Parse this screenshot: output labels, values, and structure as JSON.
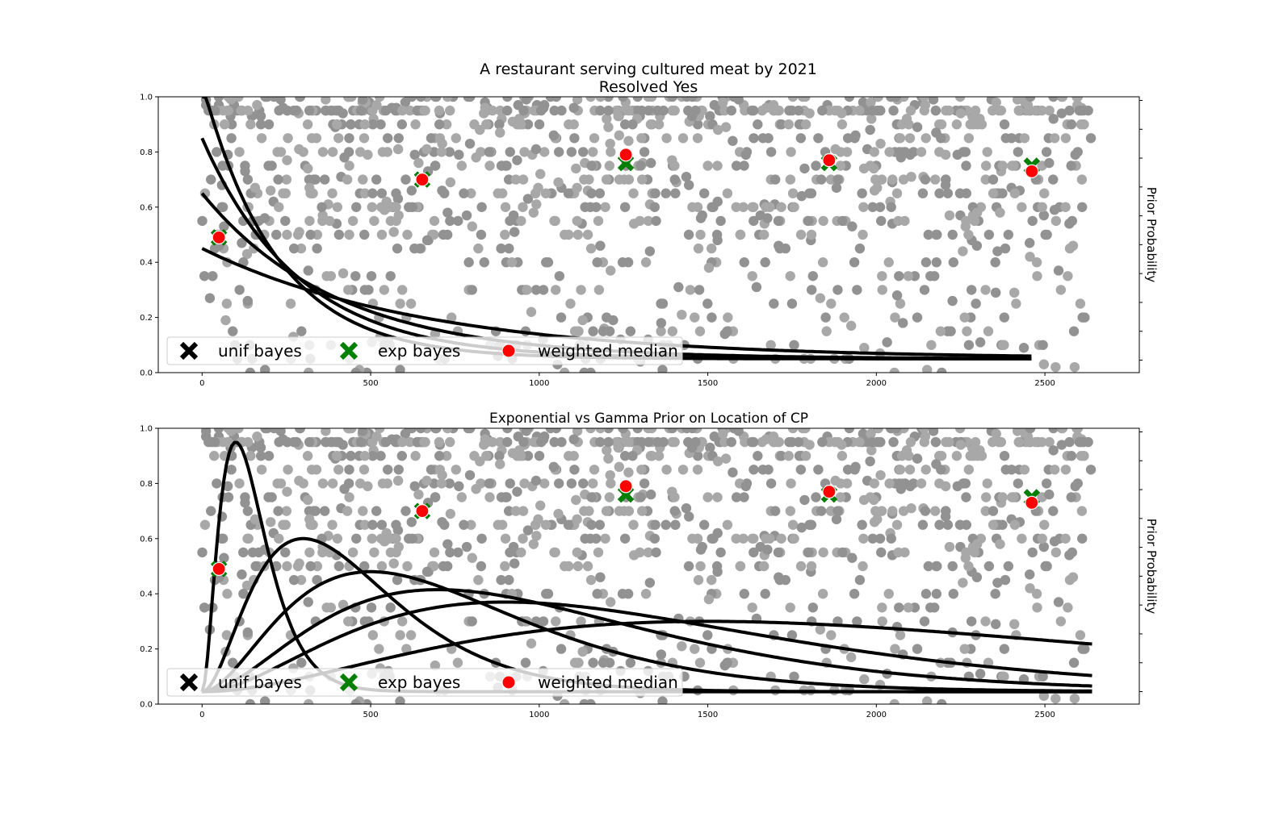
{
  "figure": {
    "title_line1": "A restaurant serving cultured meat by 2021",
    "title_line2": "Resolved Yes"
  },
  "chart_data": [
    {
      "type": "scatter",
      "title": "A restaurant serving cultured meat by 2021\nResolved Yes",
      "xlabel": "",
      "ylabel": "",
      "y2label": "Prior Probability",
      "xlim": [
        -130,
        2780
      ],
      "ylim": [
        0,
        1
      ],
      "xticks": [
        0,
        500,
        1000,
        1500,
        2000,
        2500
      ],
      "yticks": [
        0.0,
        0.2,
        0.4,
        0.6,
        0.8,
        1.0
      ],
      "legend": {
        "placement": "lower-left",
        "entries": [
          {
            "label": "unif bayes",
            "marker": "x",
            "color": "#000000"
          },
          {
            "label": "exp bayes",
            "marker": "x",
            "color": "#008000"
          },
          {
            "label": "weighted median",
            "marker": "o",
            "color": "#ff0000"
          }
        ]
      },
      "scatter_color": "#808080",
      "markers": {
        "x": [
          50,
          653,
          1257,
          1860,
          2461
        ],
        "unif_bayes": [
          0.49,
          0.7,
          0.76,
          0.76,
          0.75
        ],
        "exp_bayes": [
          0.49,
          0.7,
          0.76,
          0.76,
          0.75
        ],
        "weighted_median": [
          0.49,
          0.7,
          0.79,
          0.77,
          0.73
        ]
      },
      "prior_curves": {
        "kind": "exponential",
        "rates": [
          0.0015,
          0.0025,
          0.0035,
          0.0045
        ],
        "x_end": 2460
      }
    },
    {
      "type": "scatter",
      "title": "Exponential vs Gamma Prior on Location of CP",
      "xlabel": "",
      "ylabel": "",
      "y2label": "Prior Probability",
      "xlim": [
        -130,
        2780
      ],
      "ylim": [
        0,
        1
      ],
      "xticks": [
        0,
        500,
        1000,
        1500,
        2000,
        2500
      ],
      "yticks": [
        0.0,
        0.2,
        0.4,
        0.6,
        0.8,
        1.0
      ],
      "legend": {
        "placement": "lower-left",
        "entries": [
          {
            "label": "unif bayes",
            "marker": "x",
            "color": "#000000"
          },
          {
            "label": "exp bayes",
            "marker": "x",
            "color": "#008000"
          },
          {
            "label": "weighted median",
            "marker": "o",
            "color": "#ff0000"
          }
        ]
      },
      "scatter_color": "#808080",
      "markers": {
        "x": [
          50,
          653,
          1257,
          1860,
          2461
        ],
        "unif_bayes": [
          0.49,
          0.7,
          0.76,
          0.76,
          0.75
        ],
        "exp_bayes": [
          0.49,
          0.7,
          0.76,
          0.76,
          0.75
        ],
        "weighted_median": [
          0.49,
          0.7,
          0.79,
          0.77,
          0.73
        ]
      },
      "prior_curves": {
        "kind": "gamma",
        "modes": [
          100,
          300,
          500,
          700,
          900,
          1500
        ],
        "peaks": [
          0.95,
          0.6,
          0.48,
          0.415,
          0.37,
          0.3
        ],
        "x_end": 2645
      }
    }
  ]
}
